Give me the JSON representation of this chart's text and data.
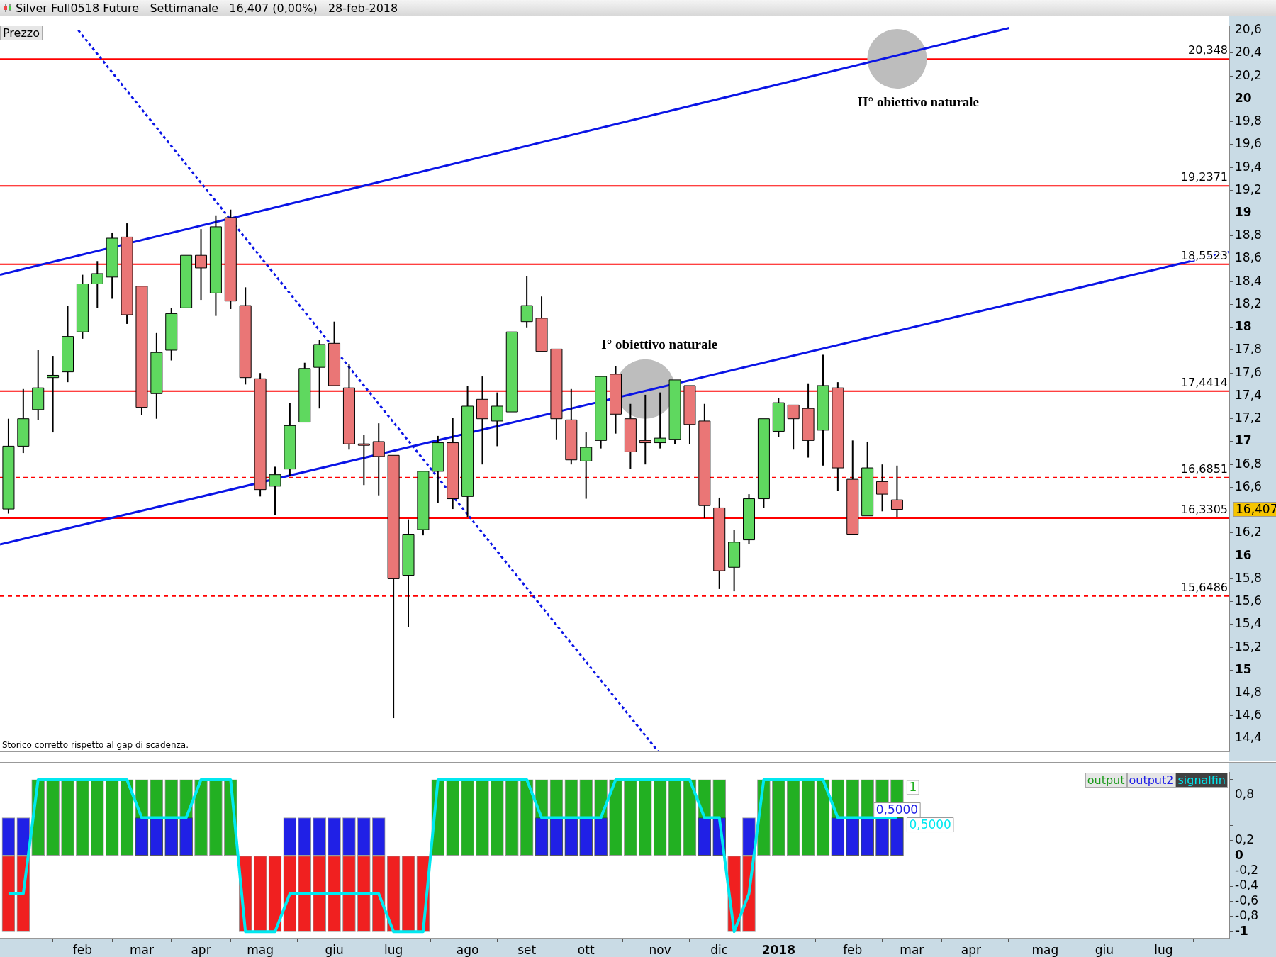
{
  "chart_data": [
    {
      "type": "candlestick",
      "title": "Silver Full0518 Future   Settimanale   16,407 (0,00%)   28-feb-2018",
      "ylabel": "Prezzo",
      "x": [
        "2017-01-02",
        "2017-01-09",
        "2017-01-16",
        "2017-01-23",
        "2017-01-30",
        "2017-02-06",
        "2017-02-13",
        "2017-02-20",
        "2017-02-27",
        "2017-03-06",
        "2017-03-13",
        "2017-03-20",
        "2017-03-27",
        "2017-04-03",
        "2017-04-10",
        "2017-04-17",
        "2017-04-24",
        "2017-05-01",
        "2017-05-08",
        "2017-05-15",
        "2017-05-22",
        "2017-05-29",
        "2017-06-05",
        "2017-06-12",
        "2017-06-19",
        "2017-06-26",
        "2017-07-03",
        "2017-07-10",
        "2017-07-17",
        "2017-07-24",
        "2017-07-31",
        "2017-08-07",
        "2017-08-14",
        "2017-08-21",
        "2017-08-28",
        "2017-09-04",
        "2017-09-11",
        "2017-09-18",
        "2017-09-25",
        "2017-10-02",
        "2017-10-09",
        "2017-10-16",
        "2017-10-23",
        "2017-10-30",
        "2017-11-06",
        "2017-11-13",
        "2017-11-20",
        "2017-11-27",
        "2017-12-04",
        "2017-12-11",
        "2017-12-18",
        "2017-12-25",
        "2018-01-01",
        "2018-01-08",
        "2018-01-15",
        "2018-01-22",
        "2018-01-29",
        "2018-02-05",
        "2018-02-12",
        "2018-02-19",
        "2018-02-26"
      ],
      "ohlc": [
        [
          16.41,
          17.2,
          16.37,
          16.96
        ],
        [
          16.96,
          17.46,
          16.9,
          17.2
        ],
        [
          17.28,
          17.8,
          17.19,
          17.47
        ],
        [
          17.56,
          17.75,
          17.08,
          17.58
        ],
        [
          17.61,
          18.19,
          17.52,
          17.92
        ],
        [
          17.96,
          18.46,
          17.9,
          18.38
        ],
        [
          18.38,
          18.58,
          18.17,
          18.47
        ],
        [
          18.44,
          18.83,
          18.25,
          18.78
        ],
        [
          18.79,
          18.91,
          18.03,
          18.11
        ],
        [
          18.36,
          18.36,
          17.23,
          17.3
        ],
        [
          17.42,
          17.95,
          17.2,
          17.78
        ],
        [
          17.8,
          18.17,
          17.71,
          18.12
        ],
        [
          18.17,
          18.63,
          18.17,
          18.63
        ],
        [
          18.63,
          18.86,
          18.24,
          18.52
        ],
        [
          18.3,
          18.98,
          18.1,
          18.88
        ],
        [
          18.96,
          19.03,
          18.16,
          18.23
        ],
        [
          18.19,
          18.35,
          17.5,
          17.56
        ],
        [
          17.55,
          17.6,
          16.52,
          16.58
        ],
        [
          16.61,
          16.78,
          16.36,
          16.71
        ],
        [
          16.76,
          17.34,
          16.7,
          17.14
        ],
        [
          17.17,
          17.69,
          17.17,
          17.64
        ],
        [
          17.65,
          17.89,
          17.29,
          17.85
        ],
        [
          17.86,
          18.05,
          17.49,
          17.49
        ],
        [
          17.47,
          17.68,
          16.93,
          16.98
        ],
        [
          16.98,
          17.06,
          16.62,
          16.97
        ],
        [
          17.0,
          17.16,
          16.53,
          16.87
        ],
        [
          16.88,
          16.88,
          14.58,
          15.8
        ],
        [
          15.83,
          16.32,
          15.38,
          16.19
        ],
        [
          16.23,
          16.74,
          16.18,
          16.74
        ],
        [
          16.74,
          17.05,
          16.46,
          16.99
        ],
        [
          16.99,
          17.21,
          16.41,
          16.5
        ],
        [
          16.52,
          17.49,
          16.34,
          17.31
        ],
        [
          17.37,
          17.57,
          16.8,
          17.2
        ],
        [
          17.18,
          17.43,
          16.96,
          17.31
        ],
        [
          17.26,
          17.96,
          17.26,
          17.96
        ],
        [
          18.05,
          18.45,
          18.0,
          18.19
        ],
        [
          18.08,
          18.27,
          17.79,
          17.79
        ],
        [
          17.81,
          17.81,
          17.02,
          17.2
        ],
        [
          17.19,
          17.46,
          16.8,
          16.84
        ],
        [
          16.83,
          17.08,
          16.5,
          16.95
        ],
        [
          17.01,
          17.57,
          16.94,
          17.57
        ],
        [
          17.59,
          17.66,
          17.07,
          17.24
        ],
        [
          17.2,
          17.33,
          16.76,
          16.91
        ],
        [
          17.01,
          17.41,
          16.8,
          16.99
        ],
        [
          16.99,
          17.43,
          16.94,
          17.03
        ],
        [
          17.02,
          17.54,
          16.98,
          17.54
        ],
        [
          17.49,
          17.49,
          16.98,
          17.15
        ],
        [
          17.18,
          17.33,
          16.33,
          16.44
        ],
        [
          16.42,
          16.51,
          15.71,
          15.87
        ],
        [
          15.9,
          16.23,
          15.69,
          16.12
        ],
        [
          16.14,
          16.54,
          16.1,
          16.5
        ],
        [
          16.5,
          17.2,
          16.42,
          17.2
        ],
        [
          17.09,
          17.38,
          17.04,
          17.34
        ],
        [
          17.32,
          17.32,
          16.93,
          17.2
        ],
        [
          17.29,
          17.51,
          16.86,
          17.01
        ],
        [
          17.1,
          17.76,
          16.79,
          17.49
        ],
        [
          17.47,
          17.52,
          16.57,
          16.77
        ],
        [
          16.67,
          17.01,
          16.19,
          16.19
        ],
        [
          16.35,
          17.0,
          16.35,
          16.77
        ],
        [
          16.65,
          16.8,
          16.39,
          16.54
        ],
        [
          16.49,
          16.79,
          16.34,
          16.407
        ]
      ],
      "colors": [
        "#5fd85f",
        "#5fd85f",
        "#5fd85f",
        "#5fd85f",
        "#5fd85f",
        "#5fd85f",
        "#5fd85f",
        "#5fd85f",
        "#ea7676",
        "#ea7676",
        "#5fd85f",
        "#5fd85f",
        "#5fd85f",
        "#ea7676",
        "#5fd85f",
        "#ea7676",
        "#ea7676",
        "#ea7676",
        "#5fd85f",
        "#5fd85f",
        "#5fd85f",
        "#5fd85f",
        "#ea7676",
        "#ea7676",
        "#ea7676",
        "#ea7676",
        "#ea7676",
        "#5fd85f",
        "#5fd85f",
        "#5fd85f",
        "#ea7676",
        "#5fd85f",
        "#ea7676",
        "#5fd85f",
        "#5fd85f",
        "#5fd85f",
        "#ea7676",
        "#ea7676",
        "#ea7676",
        "#5fd85f",
        "#5fd85f",
        "#ea7676",
        "#ea7676",
        "#ea7676",
        "#5fd85f",
        "#5fd85f",
        "#ea7676",
        "#ea7676",
        "#ea7676",
        "#5fd85f",
        "#5fd85f",
        "#5fd85f",
        "#5fd85f",
        "#ea7676",
        "#ea7676",
        "#5fd85f",
        "#ea7676",
        "#ea7676",
        "#5fd85f",
        "#ea7676",
        "#ea7676"
      ],
      "value_labels": [
        null,
        null,
        null,
        null,
        null,
        null,
        null,
        null,
        null,
        null,
        null,
        null,
        null,
        null,
        null,
        null,
        null,
        null,
        null,
        null,
        null,
        null,
        null,
        null,
        null,
        null,
        null,
        null,
        null,
        null,
        null,
        null,
        null,
        null,
        null,
        null,
        null,
        null,
        null,
        null,
        null,
        null,
        null,
        null,
        null,
        null,
        null,
        null,
        null,
        null,
        null,
        null,
        null,
        null,
        null,
        null,
        null,
        null,
        null,
        null,
        "16,407"
      ],
      "series": [
        {
          "type": "line",
          "color": "#0a14e6",
          "x": [
            "2016-12-29",
            "2018-04-20"
          ],
          "values": [
            18.46,
            20.62
          ]
        },
        {
          "type": "line",
          "color": "#0a14e6",
          "x": [
            "2016-12-29",
            "2018-08-02"
          ],
          "values": [
            16.1,
            18.66
          ]
        },
        {
          "type": "line",
          "color": "#0a14e6",
          "line_style": "dotted",
          "x": [
            "2017-02-04",
            "2017-11-05"
          ],
          "values": [
            20.6,
            14.29
          ]
        },
        {
          "type": "scatter",
          "color": "#bdbdbd",
          "marker": "circle",
          "x": [
            "2017-10-30",
            "2018-02-26"
          ],
          "values": [
            17.46,
            20.35
          ]
        }
      ],
      "ref_lines": [
        {
          "axis": "y",
          "value": 20.348,
          "label": "20,348",
          "color": "#ff0000"
        },
        {
          "axis": "y",
          "value": 19.2371,
          "label": "19,2371",
          "color": "#ff0000"
        },
        {
          "axis": "y",
          "value": 18.5523,
          "label": "18,5523",
          "color": "#ff0000"
        },
        {
          "axis": "y",
          "value": 17.4414,
          "label": "17,4414",
          "color": "#ff0000"
        },
        {
          "axis": "y",
          "value": 16.6851,
          "label": "16,6851",
          "color": "#ff0000",
          "line_style": "dashed"
        },
        {
          "axis": "y",
          "value": 16.3305,
          "label": "16,3305",
          "color": "#ff0000"
        },
        {
          "axis": "y",
          "value": 15.6486,
          "label": "15,6486",
          "color": "#ff0000",
          "line_style": "dashed"
        }
      ],
      "annotations": [
        {
          "text": "I° obiettivo naturale",
          "x": "2017-10-30",
          "y": 17.46
        },
        {
          "text": "II° obiettivo naturale",
          "x": "2018-02-26",
          "y": 20.35
        },
        "Storico corretto rispetto al gap di scadenza."
      ],
      "xlim": [
        "2016-12-29",
        "2018-08-02"
      ],
      "ylim": [
        14.29,
        20.64
      ],
      "yticks": [
        {
          "value": 14.4,
          "label": "14,4"
        },
        {
          "value": 14.6,
          "label": "14,6"
        },
        {
          "value": 14.8,
          "label": "14,8"
        },
        15,
        {
          "value": 15.2,
          "label": "15,2"
        },
        {
          "value": 15.4,
          "label": "15,4"
        },
        {
          "value": 15.6,
          "label": "15,6"
        },
        {
          "value": 15.8,
          "label": "15,8"
        },
        16,
        {
          "value": 16.2,
          "label": "16,2"
        },
        {
          "value": 16.4,
          "label": null
        },
        {
          "value": 16.6,
          "label": "16,6"
        },
        {
          "value": 16.8,
          "label": "16,8"
        },
        17,
        {
          "value": 17.2,
          "label": "17,2"
        },
        {
          "value": 17.4,
          "label": "17,4"
        },
        {
          "value": 17.6,
          "label": "17,6"
        },
        {
          "value": 17.8,
          "label": "17,8"
        },
        18,
        {
          "value": 18.2,
          "label": "18,2"
        },
        {
          "value": 18.4,
          "label": "18,4"
        },
        {
          "value": 18.6,
          "label": "18,6"
        },
        {
          "value": 18.8,
          "label": "18,8"
        },
        19,
        {
          "value": 19.2,
          "label": "19,2"
        },
        {
          "value": 19.4,
          "label": "19,4"
        },
        {
          "value": 19.6,
          "label": "19,6"
        },
        {
          "value": 19.8,
          "label": "19,8"
        },
        20,
        {
          "value": 20.2,
          "label": "20,2"
        },
        {
          "value": 20.4,
          "label": "20,4"
        },
        {
          "value": 20.6,
          "label": "20,6"
        }
      ],
      "tick_labels": "y"
    },
    {
      "type": "bar",
      "legend": "top right",
      "x": [
        "2017-01-02",
        "2017-01-09",
        "2017-01-16",
        "2017-01-23",
        "2017-01-30",
        "2017-02-06",
        "2017-02-13",
        "2017-02-20",
        "2017-02-27",
        "2017-03-06",
        "2017-03-13",
        "2017-03-20",
        "2017-03-27",
        "2017-04-03",
        "2017-04-10",
        "2017-04-17",
        "2017-04-24",
        "2017-05-01",
        "2017-05-08",
        "2017-05-15",
        "2017-05-22",
        "2017-05-29",
        "2017-06-05",
        "2017-06-12",
        "2017-06-19",
        "2017-06-26",
        "2017-07-03",
        "2017-07-10",
        "2017-07-17",
        "2017-07-24",
        "2017-07-31",
        "2017-08-07",
        "2017-08-14",
        "2017-08-21",
        "2017-08-28",
        "2017-09-04",
        "2017-09-11",
        "2017-09-18",
        "2017-09-25",
        "2017-10-02",
        "2017-10-09",
        "2017-10-16",
        "2017-10-23",
        "2017-10-30",
        "2017-11-06",
        "2017-11-13",
        "2017-11-20",
        "2017-11-27",
        "2017-12-04",
        "2017-12-11",
        "2017-12-18",
        "2017-12-25",
        "2018-01-01",
        "2018-01-08",
        "2018-01-15",
        "2018-01-22",
        "2018-01-29",
        "2018-02-05",
        "2018-02-12",
        "2018-02-19",
        "2018-02-26"
      ],
      "series": [
        {
          "name": "output",
          "color": "#1a9a1a",
          "values": [
            -1,
            -1,
            1,
            1,
            1,
            1,
            1,
            1,
            1,
            1,
            1,
            1,
            1,
            1,
            1,
            1,
            -1,
            -1,
            -1,
            -1,
            -1,
            -1,
            -1,
            -1,
            -1,
            -1,
            -1,
            -1,
            -1,
            1,
            1,
            1,
            1,
            1,
            1,
            1,
            1,
            1,
            1,
            1,
            1,
            1,
            1,
            1,
            1,
            1,
            1,
            1,
            1,
            -1,
            -1,
            1,
            1,
            1,
            1,
            1,
            1,
            1,
            1,
            1,
            1
          ],
          "colors": [
            "#f02020",
            "#f02020",
            "#22b022",
            "#22b022",
            "#22b022",
            "#22b022",
            "#22b022",
            "#22b022",
            "#22b022",
            "#22b022",
            "#22b022",
            "#22b022",
            "#22b022",
            "#22b022",
            "#22b022",
            "#22b022",
            "#f02020",
            "#f02020",
            "#f02020",
            "#f02020",
            "#f02020",
            "#f02020",
            "#f02020",
            "#f02020",
            "#f02020",
            "#f02020",
            "#f02020",
            "#f02020",
            "#f02020",
            "#22b022",
            "#22b022",
            "#22b022",
            "#22b022",
            "#22b022",
            "#22b022",
            "#22b022",
            "#22b022",
            "#22b022",
            "#22b022",
            "#22b022",
            "#22b022",
            "#22b022",
            "#22b022",
            "#22b022",
            "#22b022",
            "#22b022",
            "#22b022",
            "#22b022",
            "#22b022",
            "#f02020",
            "#f02020",
            "#22b022",
            "#22b022",
            "#22b022",
            "#22b022",
            "#22b022",
            "#22b022",
            "#22b022",
            "#22b022",
            "#22b022",
            "#22b022"
          ],
          "value_labels": [
            null,
            null,
            null,
            null,
            null,
            null,
            null,
            null,
            null,
            null,
            null,
            null,
            null,
            null,
            null,
            null,
            null,
            null,
            null,
            null,
            null,
            null,
            null,
            null,
            null,
            null,
            null,
            null,
            null,
            null,
            null,
            null,
            null,
            null,
            null,
            null,
            null,
            null,
            null,
            null,
            null,
            null,
            null,
            null,
            null,
            null,
            null,
            null,
            null,
            null,
            null,
            null,
            null,
            null,
            null,
            null,
            null,
            null,
            null,
            null,
            "1"
          ]
        },
        {
          "name": "output2",
          "color": "#2020e6",
          "values": [
            0.5,
            0.5,
            null,
            null,
            null,
            null,
            null,
            null,
            null,
            0.5,
            0.5,
            0.5,
            0.5,
            null,
            null,
            null,
            null,
            null,
            null,
            0.5,
            0.5,
            0.5,
            0.5,
            0.5,
            0.5,
            0.5,
            null,
            null,
            null,
            null,
            null,
            null,
            null,
            null,
            null,
            null,
            0.5,
            0.5,
            0.5,
            0.5,
            0.5,
            null,
            null,
            null,
            null,
            null,
            null,
            0.5,
            0.5,
            null,
            0.5,
            null,
            null,
            null,
            null,
            null,
            0.5,
            0.5,
            0.5,
            0.5,
            0.5
          ],
          "value_labels": [
            null,
            null,
            null,
            null,
            null,
            null,
            null,
            null,
            null,
            null,
            null,
            null,
            null,
            null,
            null,
            null,
            null,
            null,
            null,
            null,
            null,
            null,
            null,
            null,
            null,
            null,
            null,
            null,
            null,
            null,
            null,
            null,
            null,
            null,
            null,
            null,
            null,
            null,
            null,
            null,
            null,
            null,
            null,
            null,
            null,
            null,
            null,
            null,
            null,
            null,
            null,
            null,
            null,
            null,
            null,
            null,
            null,
            null,
            null,
            null,
            "0,5000"
          ]
        },
        {
          "name": "signalfin",
          "type": "line",
          "color": "#00e8f0",
          "values": [
            -0.5,
            -0.5,
            1,
            1,
            1,
            1,
            1,
            1,
            1,
            0.5,
            0.5,
            0.5,
            0.5,
            1,
            1,
            1,
            -1,
            -1,
            -1,
            -0.5,
            -0.5,
            -0.5,
            -0.5,
            -0.5,
            -0.5,
            -0.5,
            -1,
            -1,
            -1,
            1,
            1,
            1,
            1,
            1,
            1,
            1,
            0.5,
            0.5,
            0.5,
            0.5,
            0.5,
            1,
            1,
            1,
            1,
            1,
            1,
            0.5,
            0.5,
            -1,
            -0.5,
            1,
            1,
            1,
            1,
            1,
            0.5,
            0.5,
            0.5,
            0.5,
            0.5
          ],
          "value_labels": [
            null,
            null,
            null,
            null,
            null,
            null,
            null,
            null,
            null,
            null,
            null,
            null,
            null,
            null,
            null,
            null,
            null,
            null,
            null,
            null,
            null,
            null,
            null,
            null,
            null,
            null,
            null,
            null,
            null,
            null,
            null,
            null,
            null,
            null,
            null,
            null,
            null,
            null,
            null,
            null,
            null,
            null,
            null,
            null,
            null,
            null,
            null,
            null,
            null,
            null,
            null,
            null,
            null,
            null,
            null,
            null,
            null,
            null,
            null,
            null,
            "0,5000"
          ]
        }
      ],
      "xlim": [
        "2016-12-29",
        "2018-08-02"
      ],
      "xticks": [
        {
          "value": "2017-02-06",
          "label": "feb"
        },
        {
          "value": "2017-03-06",
          "label": "mar"
        },
        {
          "value": "2017-04-03",
          "label": "apr"
        },
        {
          "value": "2017-05-01",
          "label": "mag"
        },
        {
          "value": "2017-06-05",
          "label": "giu"
        },
        {
          "value": "2017-07-03",
          "label": "lug"
        },
        {
          "value": "2017-08-07",
          "label": "ago"
        },
        {
          "value": "2017-09-04",
          "label": "set"
        },
        {
          "value": "2017-10-02",
          "label": "ott"
        },
        {
          "value": "2017-11-06",
          "label": "nov"
        },
        {
          "value": "2017-12-04",
          "label": "dic"
        },
        {
          "value": "2018-01-01",
          "label": "2018"
        },
        {
          "value": "2018-02-05",
          "label": "feb"
        },
        {
          "value": "2018-03-05",
          "label": "mar"
        },
        {
          "value": "2018-04-02",
          "label": "apr"
        },
        {
          "value": "2018-05-07",
          "label": "mag"
        },
        {
          "value": "2018-06-04",
          "label": "giu"
        },
        {
          "value": "2018-07-02",
          "label": "lug"
        }
      ],
      "ylim": [
        -1.09,
        1.1
      ],
      "yticks": [
        -1,
        {
          "value": -0.8,
          "label": "-0,8"
        },
        {
          "value": -0.6,
          "label": "-0,6"
        },
        {
          "value": -0.4,
          "label": "-0,4"
        },
        {
          "value": -0.2,
          "label": "-0,2"
        },
        0,
        {
          "value": 0.2,
          "label": "0,2"
        },
        {
          "value": 0.4,
          "label": null
        },
        {
          "value": 0.6,
          "label": null
        },
        {
          "value": 0.8,
          "label": "0,8"
        },
        {
          "value": 1,
          "label": null
        }
      ]
    }
  ]
}
